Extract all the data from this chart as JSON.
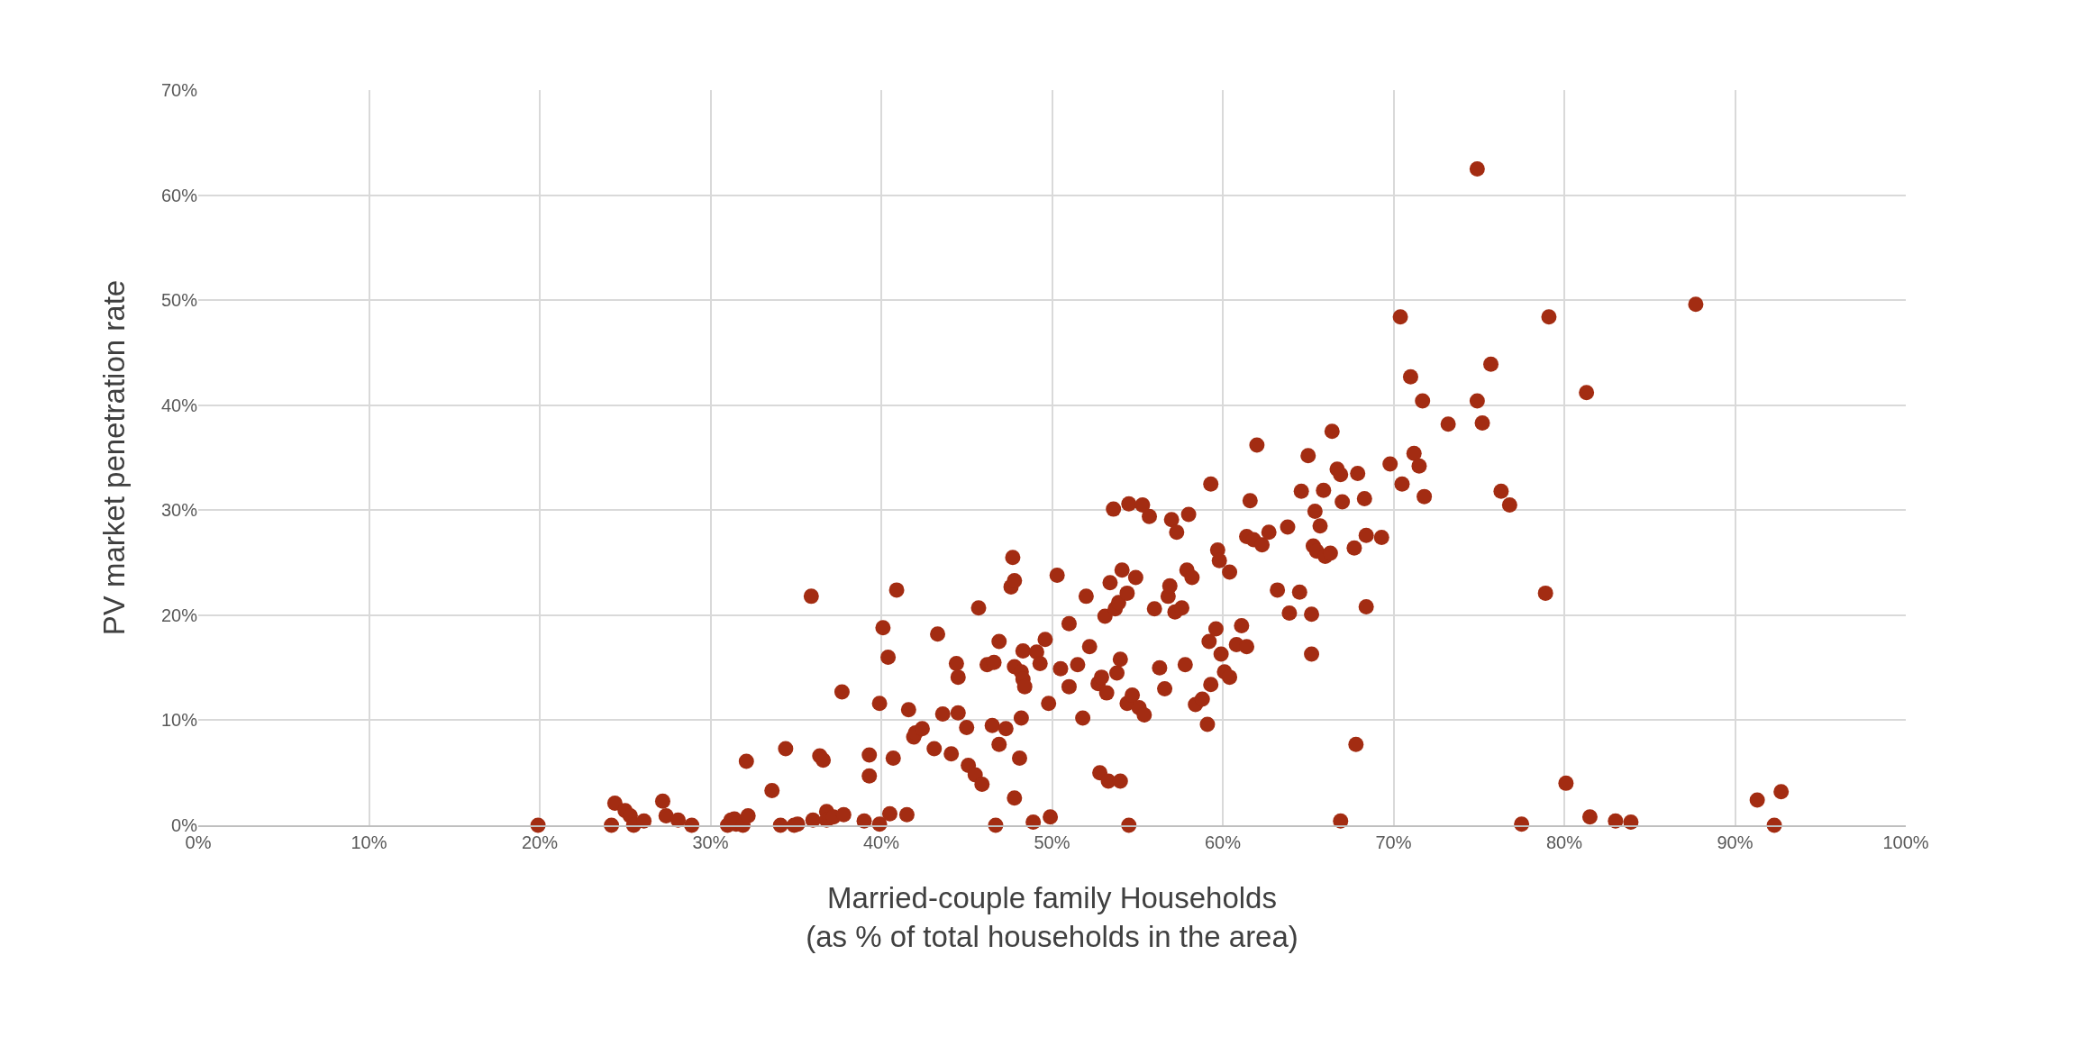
{
  "chart_data": {
    "type": "scatter",
    "xlabel": "Married-couple family Households\n(as % of total households in the area)",
    "ylabel": "PV market penetration rate",
    "series": [
      {
        "color": "#a32c12",
        "x": [
          19.9,
          24.2,
          24.4,
          25.0,
          25.3,
          25.5,
          26.1,
          27.2,
          27.4,
          28.1,
          28.9,
          31.0,
          31.2,
          31.4,
          31.5,
          31.9,
          32.1,
          32.2,
          33.6,
          34.1,
          34.4,
          34.9,
          35.1,
          35.9,
          36.0,
          36.4,
          36.6,
          36.8,
          36.8,
          37.2,
          37.7,
          37.8,
          39.0,
          39.3,
          39.3,
          39.9,
          39.9,
          40.1,
          40.4,
          40.5,
          40.7,
          40.9,
          41.5,
          41.6,
          41.9,
          42.0,
          42.4,
          43.1,
          43.3,
          43.6,
          44.1,
          44.4,
          44.5,
          44.5,
          45.0,
          45.1,
          45.5,
          45.7,
          45.9,
          46.2,
          46.5,
          46.6,
          46.7,
          46.9,
          46.9,
          47.3,
          47.6,
          47.7,
          47.8,
          47.8,
          47.8,
          48.1,
          48.2,
          48.2,
          48.3,
          48.3,
          48.4,
          48.9,
          49.1,
          49.3,
          49.6,
          49.8,
          49.9,
          50.3,
          50.5,
          51.0,
          51.0,
          51.5,
          51.8,
          52.0,
          52.2,
          52.7,
          52.8,
          52.9,
          53.1,
          53.2,
          53.3,
          53.4,
          53.6,
          53.7,
          53.8,
          53.9,
          54.0,
          54.0,
          54.1,
          54.4,
          54.4,
          54.5,
          54.5,
          54.7,
          54.9,
          55.1,
          55.3,
          55.4,
          55.7,
          56.0,
          56.3,
          56.6,
          56.8,
          56.9,
          57.0,
          57.2,
          57.3,
          57.6,
          57.8,
          57.9,
          58.0,
          58.2,
          58.4,
          58.8,
          59.1,
          59.2,
          59.3,
          59.3,
          59.6,
          59.7,
          59.8,
          59.9,
          60.1,
          60.4,
          60.4,
          60.8,
          61.1,
          61.4,
          61.4,
          61.6,
          61.8,
          62.0,
          62.3,
          62.7,
          63.2,
          63.8,
          63.9,
          64.5,
          64.6,
          65.0,
          65.2,
          65.2,
          65.3,
          65.4,
          65.5,
          65.7,
          65.9,
          66.0,
          66.3,
          66.4,
          66.7,
          66.9,
          66.9,
          67.0,
          67.7,
          67.8,
          67.9,
          68.3,
          68.4,
          68.4,
          69.3,
          69.8,
          70.4,
          70.5,
          71.0,
          71.2,
          71.5,
          71.7,
          71.8,
          73.2,
          74.9,
          74.9,
          75.2,
          75.7,
          76.3,
          76.8,
          77.5,
          78.9,
          79.1,
          80.1,
          81.3,
          81.5,
          83.0,
          83.9,
          87.7,
          91.3,
          92.3,
          92.7
        ],
        "values": [
          0,
          0,
          2.1,
          1.4,
          0.9,
          0,
          0.4,
          2.3,
          0.9,
          0.5,
          0,
          0,
          0.5,
          0.6,
          0.1,
          0,
          6.1,
          0.9,
          3.3,
          0,
          7.3,
          0,
          0.1,
          21.8,
          0.5,
          6.6,
          6.2,
          1.3,
          0.5,
          0.8,
          12.7,
          1.0,
          0.4,
          6.7,
          4.7,
          11.6,
          0.1,
          18.8,
          16.0,
          1.1,
          6.4,
          22.4,
          1.0,
          11.0,
          8.4,
          8.8,
          9.2,
          7.3,
          18.2,
          10.6,
          6.8,
          15.4,
          10.7,
          14.1,
          9.3,
          5.7,
          4.8,
          20.7,
          3.9,
          15.3,
          9.5,
          15.5,
          0,
          17.5,
          7.7,
          9.2,
          22.7,
          25.5,
          23.3,
          15.1,
          2.6,
          6.4,
          14.6,
          10.2,
          16.6,
          13.9,
          13.2,
          0.3,
          16.5,
          15.4,
          17.7,
          11.6,
          0.8,
          23.8,
          14.9,
          19.2,
          13.2,
          15.3,
          10.2,
          21.8,
          17.0,
          13.5,
          5.0,
          14.1,
          19.9,
          12.6,
          4.2,
          23.1,
          30.1,
          20.6,
          14.5,
          21.2,
          4.2,
          15.8,
          24.3,
          22.1,
          11.6,
          30.6,
          0,
          12.4,
          23.6,
          11.2,
          30.5,
          10.5,
          29.4,
          20.6,
          15.0,
          13.0,
          21.8,
          22.8,
          29.1,
          20.3,
          27.9,
          20.7,
          15.3,
          24.3,
          29.6,
          23.6,
          11.5,
          12.0,
          9.6,
          17.5,
          13.4,
          32.5,
          18.7,
          26.2,
          25.2,
          16.3,
          14.6,
          14.1,
          24.1,
          17.2,
          19.0,
          17.0,
          27.5,
          30.9,
          27.2,
          36.2,
          26.7,
          27.9,
          22.4,
          28.4,
          20.2,
          22.2,
          31.8,
          35.2,
          20.1,
          16.3,
          26.6,
          29.9,
          26.1,
          28.5,
          31.9,
          25.6,
          25.9,
          37.5,
          33.9,
          33.4,
          0.4,
          30.8,
          26.4,
          7.7,
          33.5,
          31.1,
          20.8,
          27.6,
          27.4,
          34.4,
          48.4,
          32.5,
          42.7,
          35.4,
          34.2,
          40.4,
          31.3,
          38.2,
          62.5,
          40.4,
          38.3,
          43.9,
          31.8,
          30.5,
          0.1,
          22.1,
          48.4,
          4.0,
          41.2,
          0.8,
          0.4,
          0.3,
          49.6,
          2.4,
          0,
          3.2
        ]
      }
    ],
    "xlim": [
      0,
      100
    ],
    "xticks": [
      {
        "value": 0,
        "label": "0%"
      },
      {
        "value": 10,
        "label": "10%"
      },
      {
        "value": 20,
        "label": "20%"
      },
      {
        "value": 30,
        "label": "30%"
      },
      {
        "value": 40,
        "label": "40%"
      },
      {
        "value": 50,
        "label": "50%"
      },
      {
        "value": 60,
        "label": "60%"
      },
      {
        "value": 70,
        "label": "70%"
      },
      {
        "value": 80,
        "label": "80%"
      },
      {
        "value": 90,
        "label": "90%"
      },
      {
        "value": 100,
        "label": "100%"
      }
    ],
    "ylim": [
      0,
      70
    ],
    "yticks": [
      {
        "value": 0,
        "label": "0%"
      },
      {
        "value": 10,
        "label": "10%"
      },
      {
        "value": 20,
        "label": "20%"
      },
      {
        "value": 30,
        "label": "30%"
      },
      {
        "value": 40,
        "label": "40%"
      },
      {
        "value": 50,
        "label": "50%"
      },
      {
        "value": 60,
        "label": "60%"
      },
      {
        "value": 70,
        "label": "70%"
      }
    ],
    "grid": true,
    "marker": "circle"
  }
}
